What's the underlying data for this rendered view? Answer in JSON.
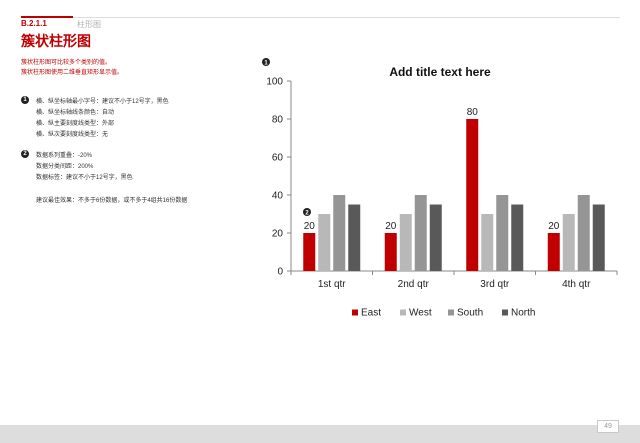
{
  "header": {
    "section_number": "B.2.1.1",
    "section_name": "柱形图"
  },
  "title": "簇状柱形图",
  "description": [
    "簇状柱形图可比较多个类别的值。",
    "簇状柱形图使用二维垂直矩形显示值。"
  ],
  "notes_1": {
    "marker": "1",
    "lines": [
      "横、纵坐标轴最小字号：建议不小于12号字，黑色",
      "横、纵坐标轴线条颜色：自动",
      "横、纵主要刻度线类型：外部",
      "横、纵次要刻度线类型：无"
    ]
  },
  "notes_2": {
    "marker": "2",
    "lines": [
      "数据系列重叠：-20%",
      "数据分类间距：200%",
      "数据标签：建议不小于12号字，黑色"
    ]
  },
  "best_effect": "建议最佳效果：不多于6份数据，或不多于4组共16份数据",
  "page_number": "49",
  "chart_markers": {
    "axis": "1",
    "label": "2"
  },
  "colors": {
    "accent": "#c00000",
    "east": "#c00000",
    "west": "#b8b8b8",
    "south": "#959595",
    "north": "#595959"
  },
  "chart_data": {
    "type": "bar",
    "title": "Add title text here",
    "categories": [
      "1st qtr",
      "2nd qtr",
      "3rd qtr",
      "4th qtr"
    ],
    "series": [
      {
        "name": "East",
        "values": [
          20,
          20,
          80,
          20
        ],
        "color": "#c00000"
      },
      {
        "name": "West",
        "values": [
          30,
          30,
          30,
          30
        ],
        "color": "#b8b8b8"
      },
      {
        "name": "South",
        "values": [
          40,
          40,
          40,
          40
        ],
        "color": "#959595"
      },
      {
        "name": "North",
        "values": [
          35,
          35,
          35,
          35
        ],
        "color": "#595959"
      }
    ],
    "data_labels_series": "East",
    "ylim": [
      0,
      100
    ],
    "yticks": [
      0,
      20,
      40,
      60,
      80,
      100
    ],
    "legend_position": "bottom",
    "grid": false
  }
}
